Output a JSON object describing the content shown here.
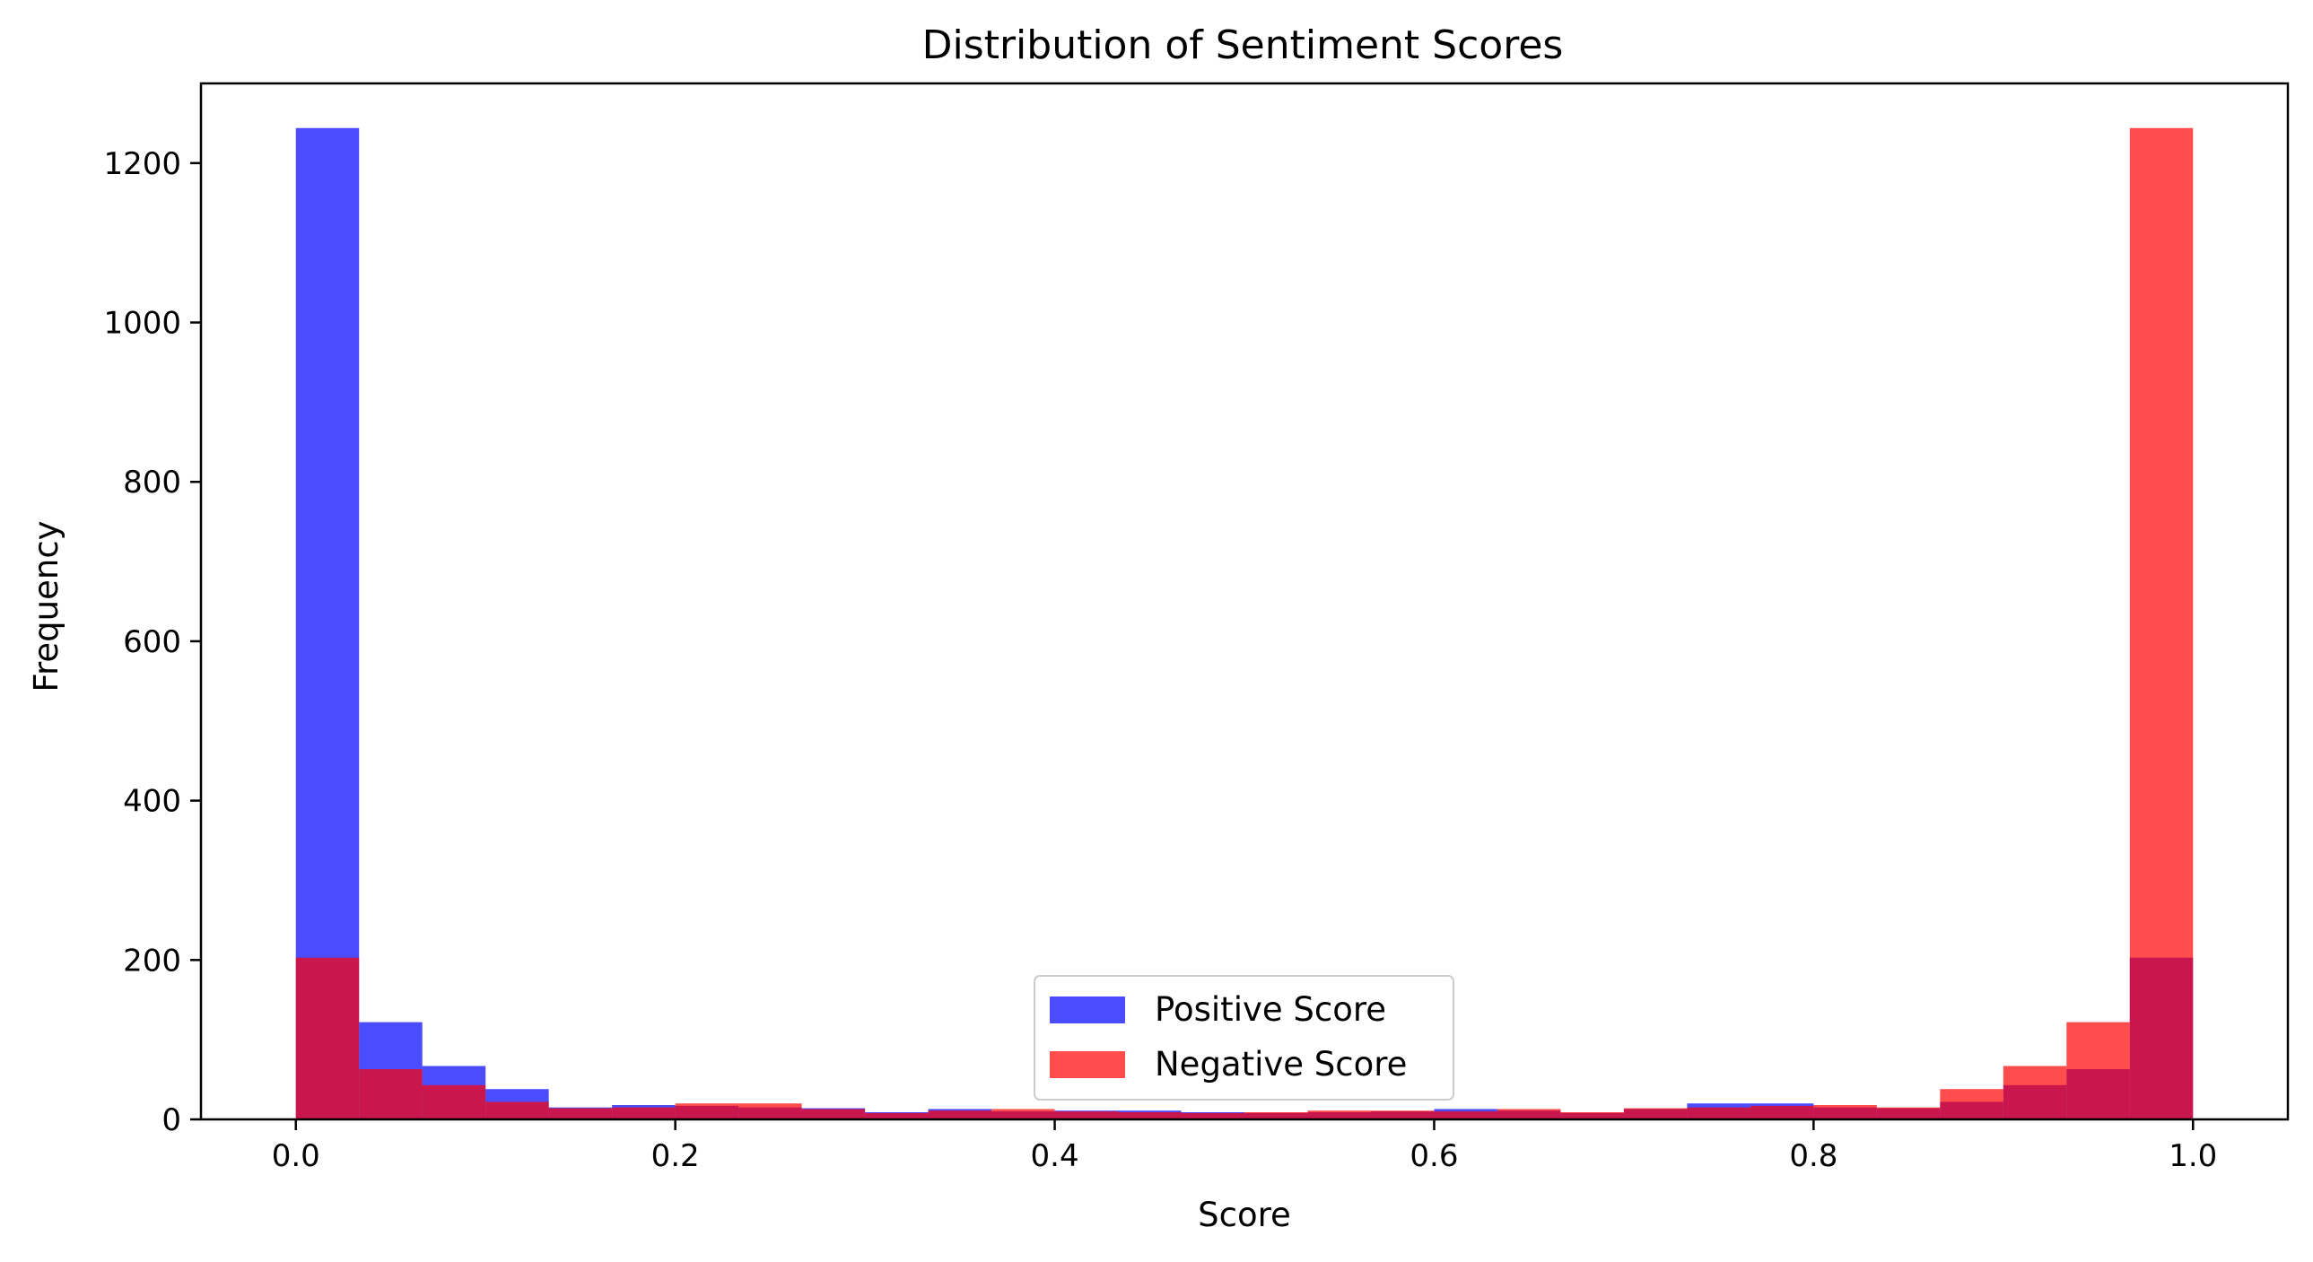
{
  "chart_data": {
    "type": "bar",
    "title": "Distribution of Sentiment Scores",
    "xlabel": "Score",
    "ylabel": "Frequency",
    "xlim": [
      -0.05,
      1.05
    ],
    "ylim": [
      0,
      1300
    ],
    "xticks": [
      "0.0",
      "0.2",
      "0.4",
      "0.6",
      "0.8",
      "1.0"
    ],
    "yticks": [
      "0",
      "200",
      "400",
      "600",
      "800",
      "1000",
      "1200"
    ],
    "bin_start": 0.0,
    "bin_end": 1.0,
    "bins": 30,
    "legend_position": "lower-center",
    "series": [
      {
        "name": "Positive Score",
        "color": "#0000ff",
        "opacity": 0.7,
        "values": [
          1244,
          122,
          67,
          38,
          15,
          18,
          17,
          15,
          14,
          9,
          13,
          10,
          11,
          11,
          9,
          8,
          9,
          10,
          13,
          11,
          8,
          13,
          20,
          20,
          15,
          14,
          22,
          43,
          63,
          203
        ]
      },
      {
        "name": "Negative Score",
        "color": "#ff0000",
        "opacity": 0.7,
        "values": [
          203,
          63,
          43,
          22,
          14,
          15,
          20,
          20,
          13,
          8,
          11,
          13,
          10,
          9,
          8,
          9,
          11,
          11,
          10,
          13,
          9,
          14,
          15,
          17,
          18,
          15,
          38,
          67,
          122,
          1244
        ]
      }
    ]
  }
}
